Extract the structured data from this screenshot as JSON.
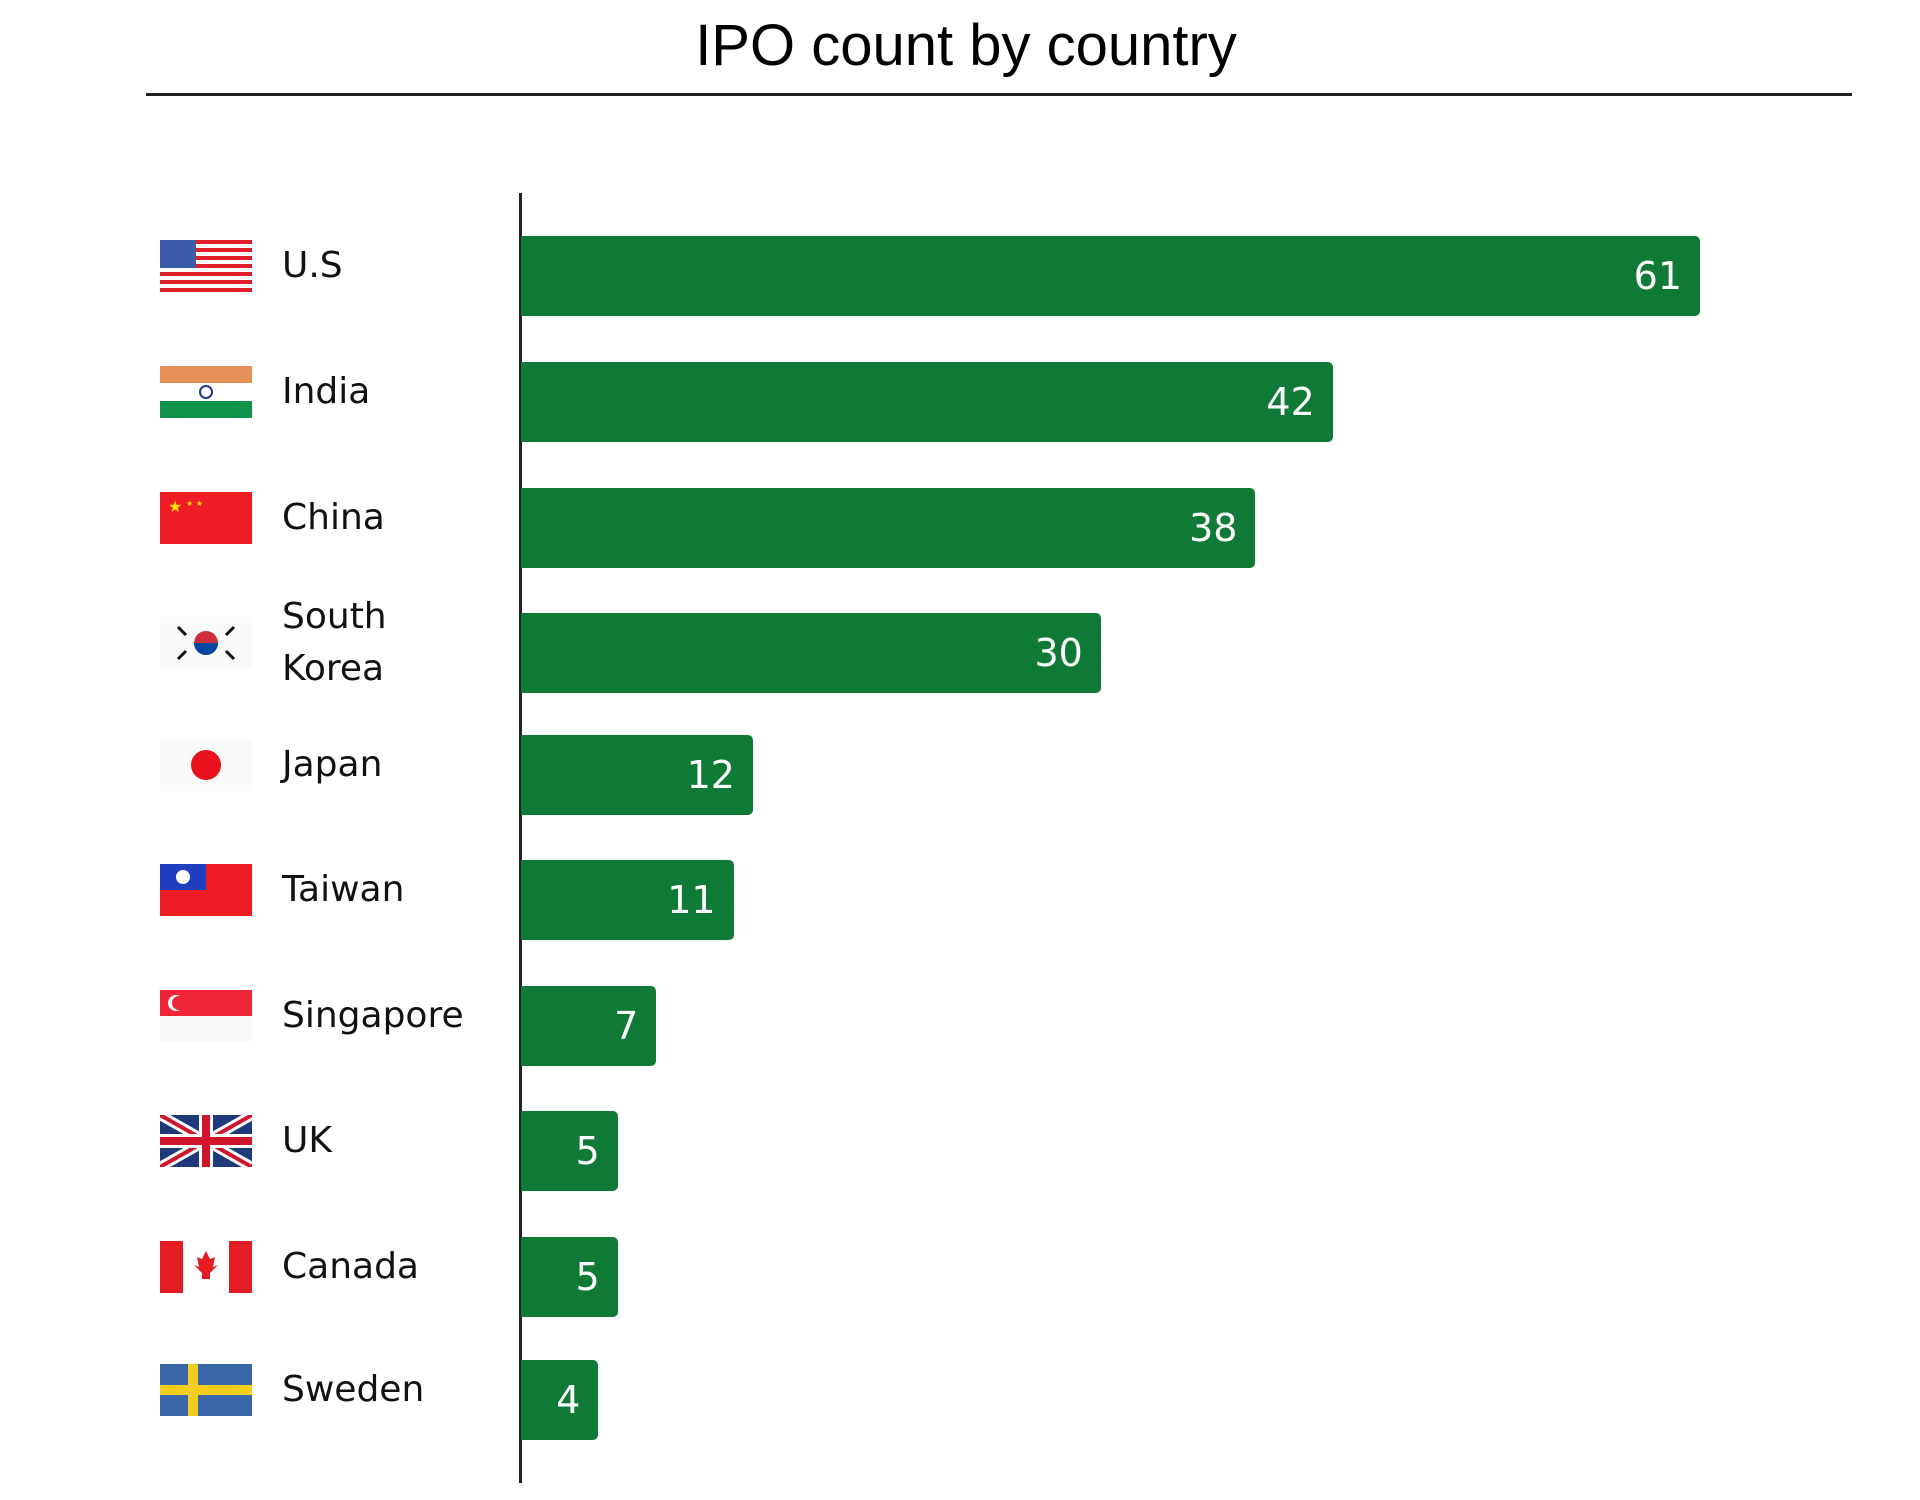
{
  "chart_data": {
    "type": "bar",
    "orientation": "horizontal",
    "title": "IPO count by country",
    "categories": [
      "U.S",
      "India",
      "China",
      "South Korea",
      "Japan",
      "Taiwan",
      "Singapore",
      "UK",
      "Canada",
      "Sweden"
    ],
    "category_lines": [
      [
        "U.S"
      ],
      [
        "India"
      ],
      [
        "China"
      ],
      [
        "South",
        "Korea"
      ],
      [
        "Japan"
      ],
      [
        "Taiwan"
      ],
      [
        "Singapore"
      ],
      [
        "UK"
      ],
      [
        "Canada"
      ],
      [
        "Sweden"
      ]
    ],
    "flags": [
      "us-flag-icon",
      "india-flag-icon",
      "china-flag-icon",
      "south-korea-flag-icon",
      "japan-flag-icon",
      "taiwan-flag-icon",
      "singapore-flag-icon",
      "uk-flag-icon",
      "canada-flag-icon",
      "sweden-flag-icon"
    ],
    "values": [
      61,
      42,
      38,
      30,
      12,
      11,
      7,
      5,
      5,
      4
    ],
    "xlim": [
      0,
      61
    ],
    "grid": false,
    "bar_color": "#0f7a35",
    "data_labels": true
  }
}
